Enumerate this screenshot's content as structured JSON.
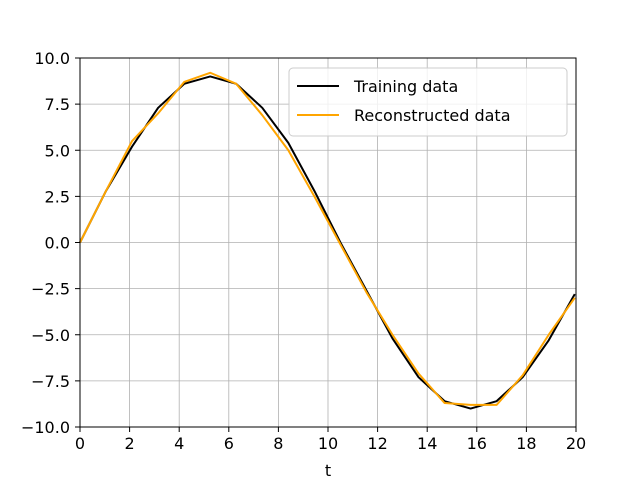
{
  "chart_data": {
    "type": "line",
    "title": "",
    "xlabel": "t",
    "ylabel": "",
    "xlim": [
      0,
      20
    ],
    "ylim": [
      -10,
      10
    ],
    "x_ticks": [
      0,
      2,
      4,
      6,
      8,
      10,
      12,
      14,
      16,
      18,
      20
    ],
    "y_ticks": [
      -10.0,
      -7.5,
      -5.0,
      -2.5,
      0.0,
      2.5,
      5.0,
      7.5,
      10.0
    ],
    "x_tick_labels": [
      "0",
      "2",
      "4",
      "6",
      "8",
      "10",
      "12",
      "14",
      "16",
      "18",
      "20"
    ],
    "y_tick_labels": [
      "−10.0",
      "−7.5",
      "−5.0",
      "−2.5",
      "0.0",
      "2.5",
      "5.0",
      "7.5",
      "10.0"
    ],
    "grid": true,
    "legend_position": "upper right",
    "series": [
      {
        "name": "Training data",
        "color": "#000000",
        "x": [
          0,
          1.05,
          2.1,
          3.15,
          4.2,
          5.25,
          6.3,
          7.35,
          8.4,
          9.45,
          10.5,
          11.55,
          12.6,
          13.65,
          14.7,
          15.75,
          16.8,
          17.85,
          18.9,
          19.95
        ],
        "y": [
          0.0,
          2.8,
          5.2,
          7.3,
          8.6,
          9.0,
          8.6,
          7.3,
          5.4,
          2.8,
          0.0,
          -2.6,
          -5.2,
          -7.3,
          -8.6,
          -9.0,
          -8.6,
          -7.3,
          -5.3,
          -2.8
        ]
      },
      {
        "name": "Reconstructed data",
        "color": "#ffa500",
        "x": [
          0,
          1.05,
          2.1,
          3.15,
          4.2,
          5.25,
          6.3,
          7.35,
          8.4,
          9.45,
          10.5,
          11.55,
          12.6,
          13.65,
          14.7,
          15.75,
          16.8,
          17.85,
          18.9,
          19.95
        ],
        "y": [
          0.0,
          2.8,
          5.5,
          7.0,
          8.7,
          9.2,
          8.6,
          6.9,
          5.0,
          2.5,
          -0.1,
          -2.7,
          -5.0,
          -7.1,
          -8.7,
          -8.8,
          -8.8,
          -7.2,
          -5.0,
          -3.0
        ]
      }
    ]
  }
}
